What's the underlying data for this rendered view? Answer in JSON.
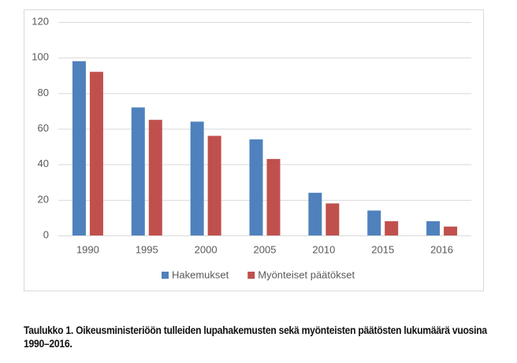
{
  "chart_data": {
    "type": "bar",
    "categories": [
      "1990",
      "1995",
      "2000",
      "2005",
      "2010",
      "2015",
      "2016"
    ],
    "series": [
      {
        "name": "Hakemukset",
        "color": "#4f81bd",
        "values": [
          98,
          72,
          64,
          54,
          24,
          14,
          8
        ]
      },
      {
        "name": "Myönteiset päätökset",
        "color": "#c0504d",
        "values": [
          92,
          65,
          56,
          43,
          18,
          8,
          5
        ]
      }
    ],
    "ylim": [
      0,
      120
    ],
    "yticks": [
      0,
      20,
      40,
      60,
      80,
      100,
      120
    ],
    "grid": true,
    "legend": "bottom"
  },
  "caption": "Taulukko 1. Oikeusministeriöön tulleiden lupahakemusten sekä myönteisten päätösten lukumäärä vuosina 1990–2016."
}
